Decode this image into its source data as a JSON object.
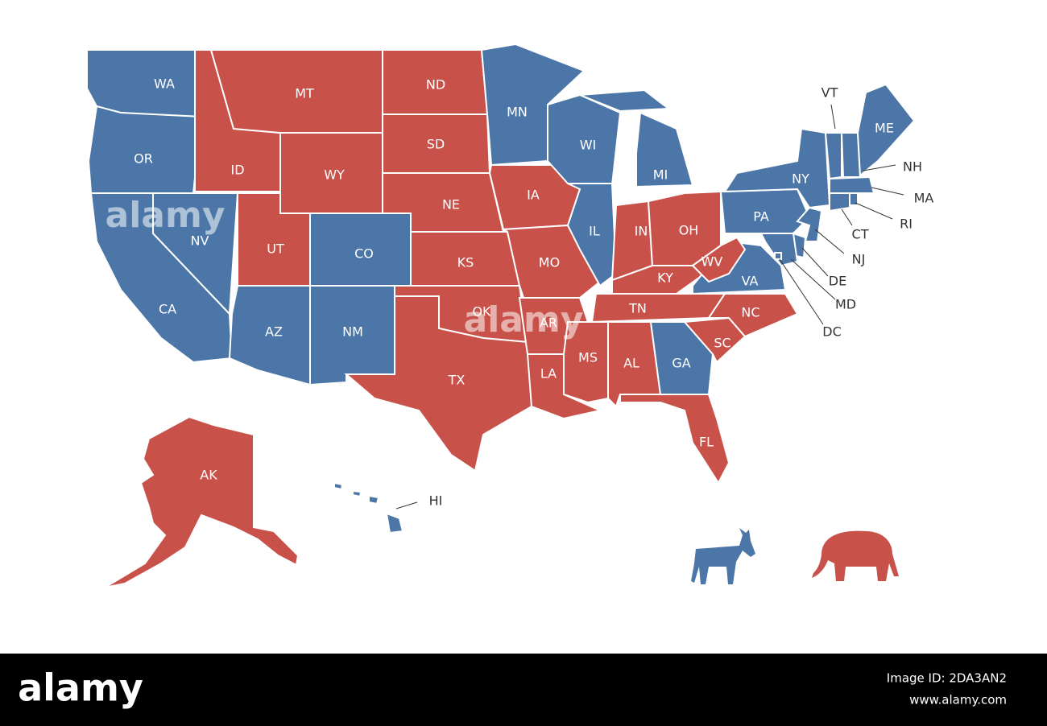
{
  "states": [
    {
      "code": "WA",
      "color": "#4b76a7"
    },
    {
      "code": "OR",
      "color": "#4b76a7"
    },
    {
      "code": "CA",
      "color": "#4b76a7"
    },
    {
      "code": "NV",
      "color": "#4b76a7"
    },
    {
      "code": "ID",
      "color": "#c8524a"
    },
    {
      "code": "MT",
      "color": "#c8524a"
    },
    {
      "code": "WY",
      "color": "#c8524a"
    },
    {
      "code": "UT",
      "color": "#c8524a"
    },
    {
      "code": "CO",
      "color": "#4b76a7"
    },
    {
      "code": "AZ",
      "color": "#4b76a7"
    },
    {
      "code": "NM",
      "color": "#4b76a7"
    },
    {
      "code": "ND",
      "color": "#c8524a"
    },
    {
      "code": "SD",
      "color": "#c8524a"
    },
    {
      "code": "NE",
      "color": "#c8524a"
    },
    {
      "code": "KS",
      "color": "#c8524a"
    },
    {
      "code": "OK",
      "color": "#c8524a"
    },
    {
      "code": "TX",
      "color": "#c8524a"
    },
    {
      "code": "MN",
      "color": "#4b76a7"
    },
    {
      "code": "IA",
      "color": "#c8524a"
    },
    {
      "code": "MO",
      "color": "#c8524a"
    },
    {
      "code": "AR",
      "color": "#c8524a"
    },
    {
      "code": "LA",
      "color": "#c8524a"
    },
    {
      "code": "WI",
      "color": "#4b76a7"
    },
    {
      "code": "IL",
      "color": "#4b76a7"
    },
    {
      "code": "MI",
      "color": "#4b76a7"
    },
    {
      "code": "IN",
      "color": "#c8524a"
    },
    {
      "code": "OH",
      "color": "#c8524a"
    },
    {
      "code": "KY",
      "color": "#c8524a"
    },
    {
      "code": "TN",
      "color": "#c8524a"
    },
    {
      "code": "MS",
      "color": "#c8524a"
    },
    {
      "code": "AL",
      "color": "#c8524a"
    },
    {
      "code": "GA",
      "color": "#4b76a7"
    },
    {
      "code": "FL",
      "color": "#c8524a"
    },
    {
      "code": "SC",
      "color": "#c8524a"
    },
    {
      "code": "NC",
      "color": "#c8524a"
    },
    {
      "code": "VA",
      "color": "#4b76a7"
    },
    {
      "code": "WV",
      "color": "#c8524a"
    },
    {
      "code": "PA",
      "color": "#4b76a7"
    },
    {
      "code": "NY",
      "color": "#4b76a7"
    },
    {
      "code": "VT",
      "color": "#4b76a7"
    },
    {
      "code": "NH",
      "color": "#4b76a7"
    },
    {
      "code": "ME",
      "color": "#4b76a7"
    },
    {
      "code": "MA",
      "color": "#4b76a7"
    },
    {
      "code": "CT",
      "color": "#4b76a7"
    },
    {
      "code": "RI",
      "color": "#4b76a7"
    },
    {
      "code": "NJ",
      "color": "#4b76a7"
    },
    {
      "code": "DE",
      "color": "#4b76a7"
    },
    {
      "code": "MD",
      "color": "#4b76a7"
    },
    {
      "code": "DC",
      "color": "#4b76a7"
    },
    {
      "code": "AK",
      "color": "#c8524a"
    },
    {
      "code": "HI",
      "color": "#4b76a7"
    }
  ],
  "watermarks": [
    "alamy",
    "alamy",
    "alamy"
  ],
  "footer": {
    "brand": "alamy",
    "image_id": "Image ID: 2DA3AN2",
    "url": "www.alamy.com"
  }
}
